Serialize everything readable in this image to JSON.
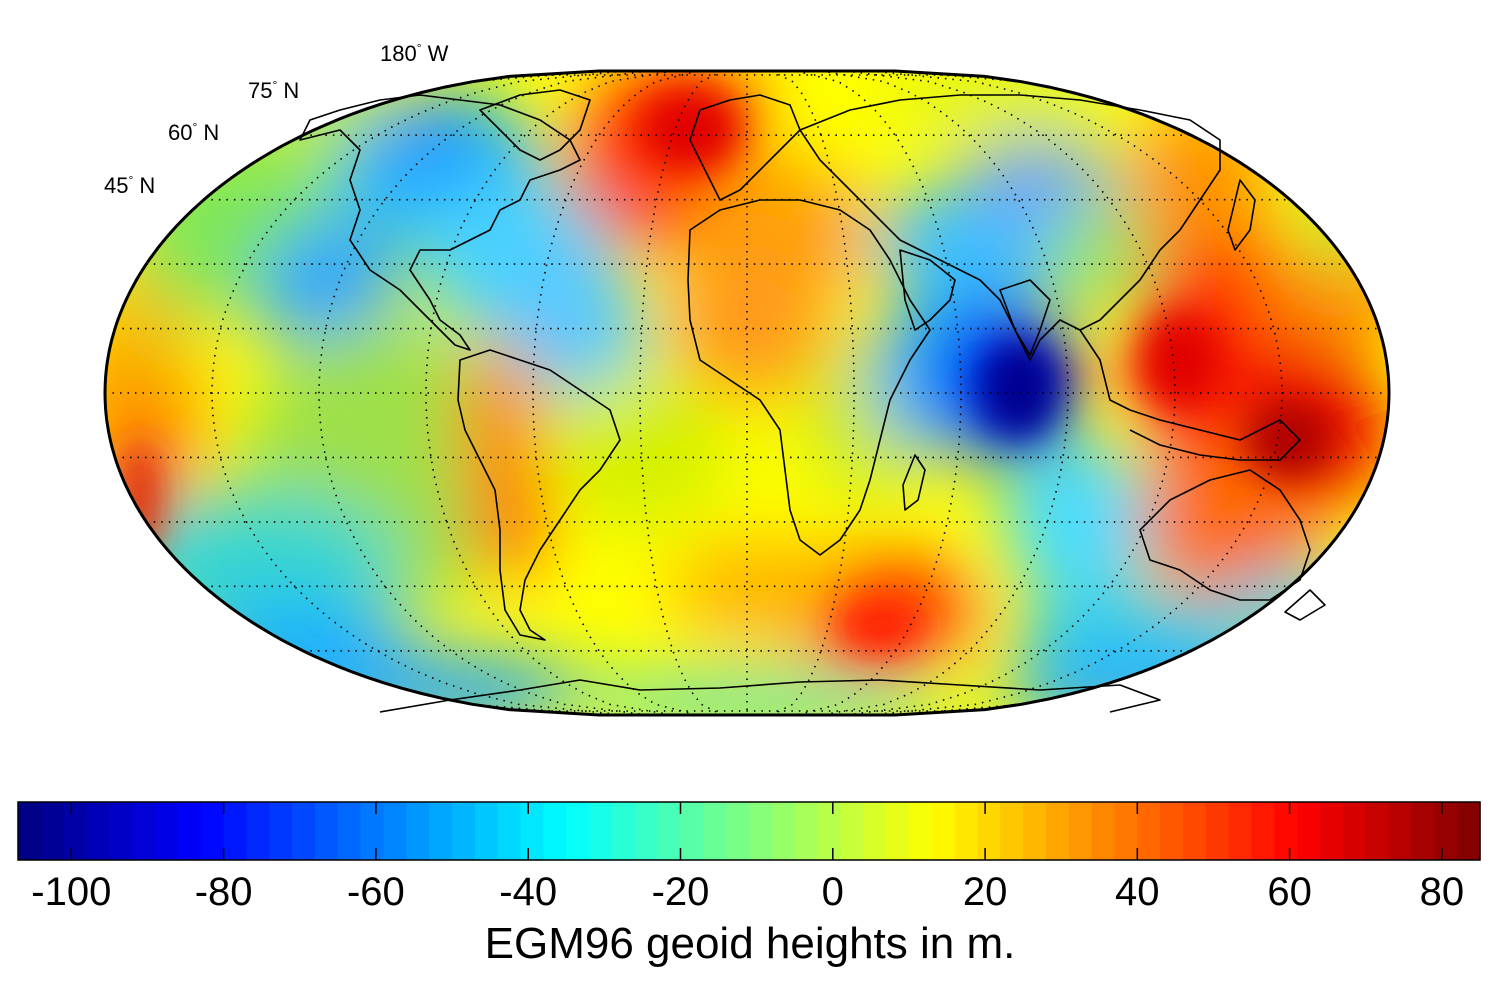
{
  "map": {
    "parallel_labels": [
      {
        "deg": "180",
        "sym": "°",
        "hem": "W"
      },
      {
        "deg": "75",
        "sym": "°",
        "hem": "N"
      },
      {
        "deg": "60",
        "sym": "°",
        "hem": "N"
      },
      {
        "deg": "45",
        "sym": "°",
        "hem": "N"
      }
    ],
    "projection": "pseudo-cylindrical (Robinson-like)",
    "grid": "dotted graticule"
  },
  "colorbar": {
    "title": "EGM96 geoid heights in m.",
    "ticks": [
      "-100",
      "-80",
      "-60",
      "-40",
      "-20",
      "0",
      "20",
      "40",
      "60",
      "80"
    ],
    "range": [
      -107,
      85
    ],
    "tick_values": [
      -100,
      -80,
      -60,
      -40,
      -20,
      0,
      20,
      40,
      60,
      80
    ],
    "colormap": "jet",
    "colors": [
      "#00008f",
      "#0000ff",
      "#00ffff",
      "#ffff00",
      "#ff0000",
      "#800000"
    ]
  }
}
